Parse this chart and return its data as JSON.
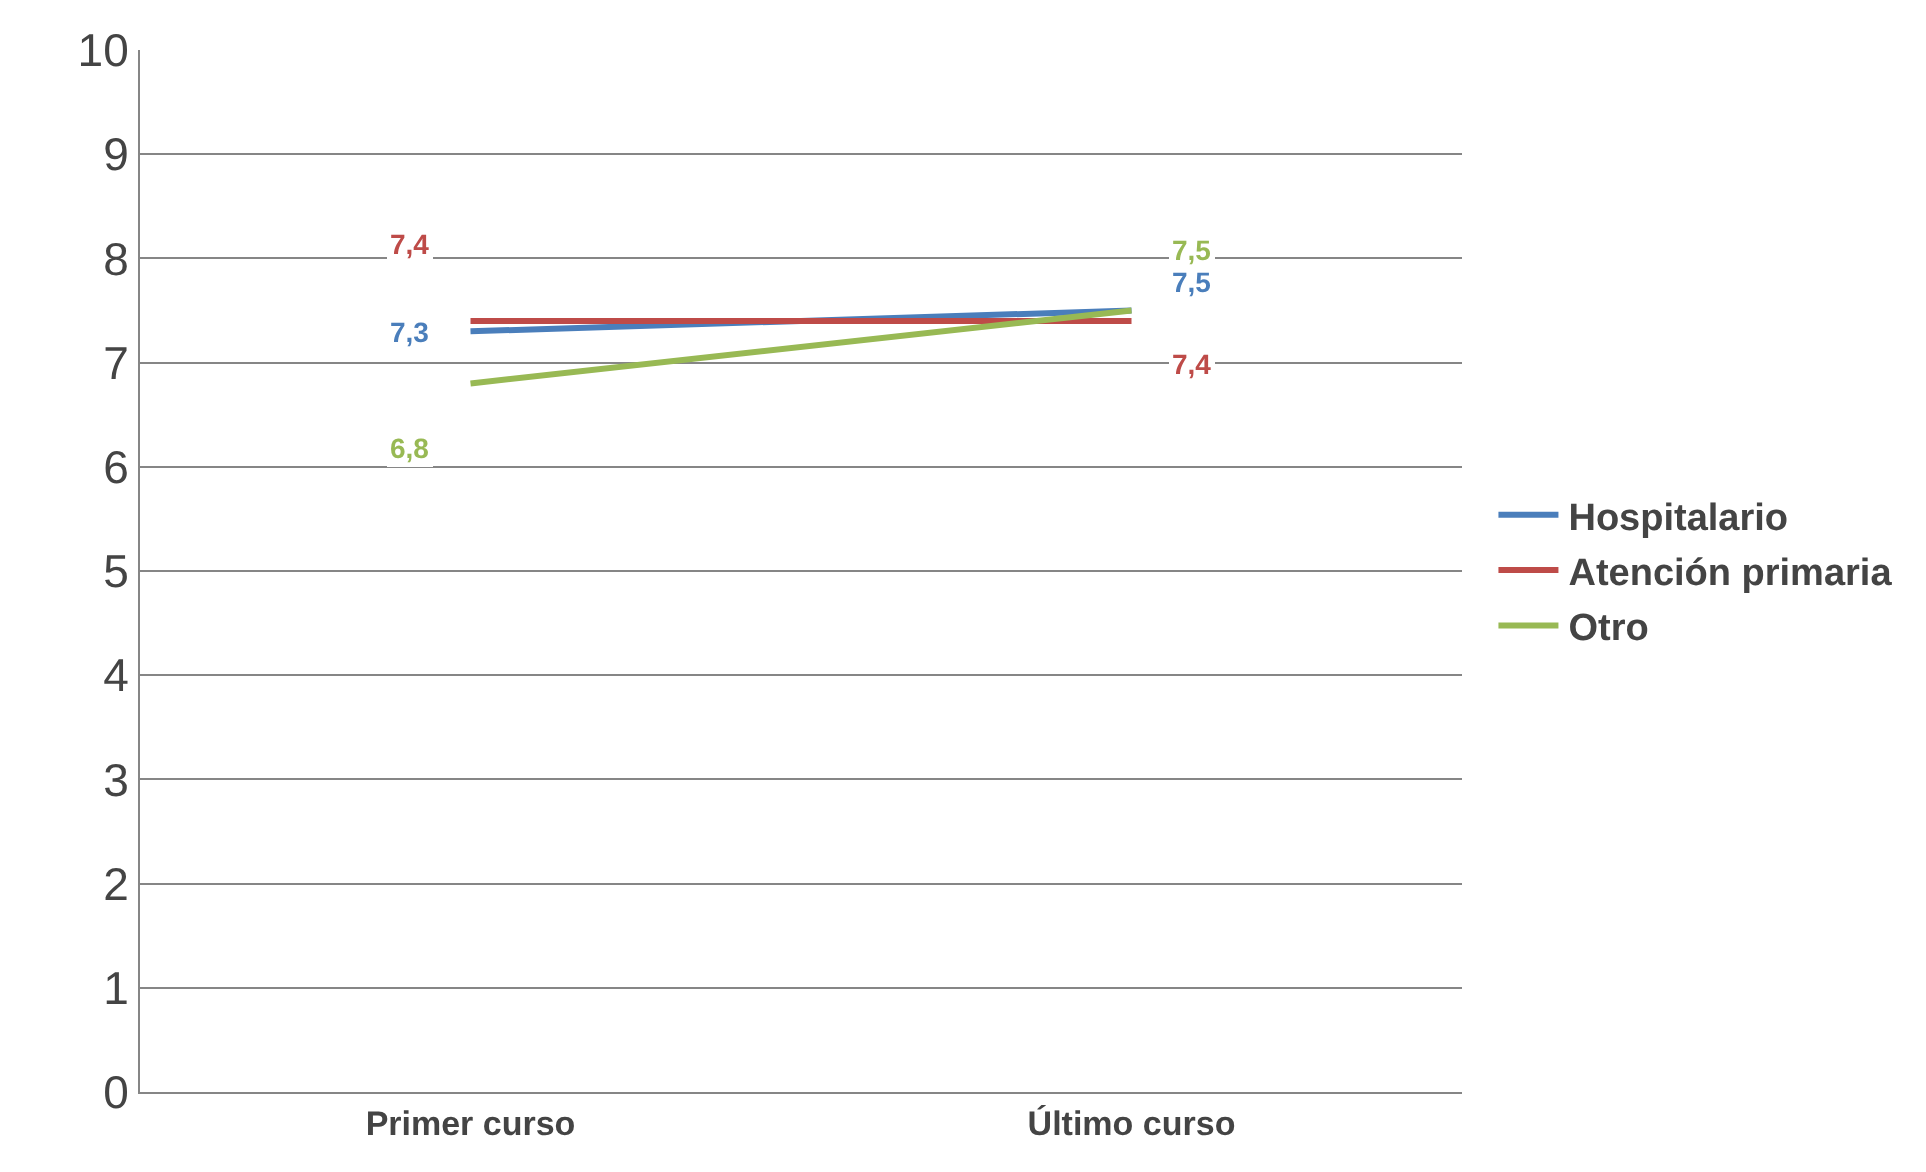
{
  "chart_data": {
    "type": "line",
    "categories": [
      "Primer curso",
      "Último curso"
    ],
    "series": [
      {
        "name": "Hospitalario",
        "color": "#4a7ebb",
        "values": [
          7.3,
          7.5
        ],
        "value_labels": [
          "7,3",
          "7,5"
        ]
      },
      {
        "name": "Atención primaria",
        "color": "#be4b48",
        "values": [
          7.4,
          7.4
        ],
        "value_labels": [
          "7,4",
          "7,4"
        ]
      },
      {
        "name": "Otro",
        "color": "#98b954",
        "values": [
          6.8,
          7.5
        ],
        "value_labels": [
          "6,8",
          "7,5"
        ]
      }
    ],
    "ylim": [
      0,
      10
    ],
    "yticks": [
      0,
      1,
      2,
      3,
      4,
      5,
      6,
      7,
      8,
      9,
      10
    ],
    "grid": "y",
    "legend": "right",
    "line_style": "solid"
  }
}
